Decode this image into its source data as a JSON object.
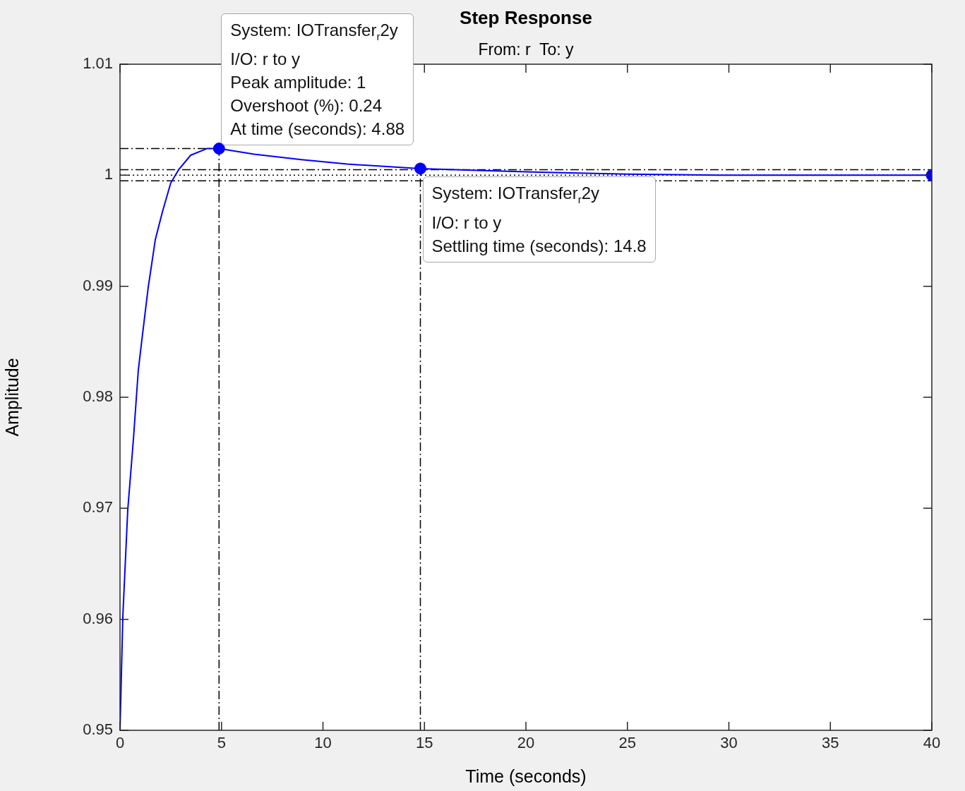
{
  "chart_data": {
    "type": "line",
    "title": "Step Response",
    "subtitle": "From: r  To: y",
    "xlabel": "Time (seconds)",
    "ylabel": "Amplitude",
    "xlim": [
      0,
      40
    ],
    "xticks": [
      0,
      5,
      10,
      15,
      20,
      25,
      30,
      35,
      40
    ],
    "ylim": [
      0.95,
      1.01
    ],
    "yticks": [
      0.95,
      0.96,
      0.97,
      0.98,
      0.99,
      1,
      1.01
    ],
    "grid": false,
    "legend": false,
    "series": [
      {
        "color": "#0000ff",
        "marker": "none",
        "x": [
          0,
          0.14,
          0.38,
          0.66,
          0.9,
          1.04,
          1.39,
          1.74,
          2.09,
          2.5,
          2.89,
          3.48,
          4.28,
          4.88,
          6.6,
          8.94,
          11.2,
          14.8,
          20,
          25,
          30,
          40
        ],
        "values": [
          0.95,
          0.9603,
          0.9698,
          0.9762,
          0.9824,
          0.9846,
          0.9899,
          0.9942,
          0.9967,
          0.9993,
          1.0005,
          1.0018,
          1.0024,
          1.0024,
          1.0019,
          1.0014,
          1.001,
          1.0006,
          1.0003,
          1.0001,
          1,
          1
        ]
      },
      {
        "type": "scatter",
        "color": "#0000ff",
        "marker": "circle",
        "x": [
          4.88,
          14.8,
          40
        ],
        "values": [
          1.0024,
          1.0006,
          1
        ]
      }
    ],
    "ref_lines": [
      {
        "axis": "y",
        "value": 1.0024,
        "color": "#000000",
        "line_style": "dashed"
      },
      {
        "axis": "x",
        "value": 4.88,
        "color": "#000000",
        "line_style": "dashed"
      },
      {
        "axis": "x",
        "value": 14.8,
        "color": "#000000",
        "line_style": "dashed"
      },
      {
        "axis": "y",
        "value": 1.0005,
        "color": "#000000",
        "line_style": "dashed"
      },
      {
        "axis": "y",
        "value": 0.9995,
        "color": "#000000",
        "line_style": "dashed"
      },
      {
        "axis": "y",
        "value": 1,
        "color": "#000000",
        "line_style": "dotted"
      }
    ],
    "annotations": [
      "System: IOTransfer$_{r}$2y",
      "I/O: r to y",
      "Peak amplitude: 1",
      "Overshoot (%): 0.24",
      {
        "text": "At time (seconds): 4.88",
        "x": 4.88,
        "y": 1.0024
      },
      {
        "text": "System: IOTransfer$_{r}$2y",
        "x": 14.8,
        "y": 1.0006
      },
      "I/O: r to y",
      "Settling time (seconds): 14.8"
    ]
  }
}
